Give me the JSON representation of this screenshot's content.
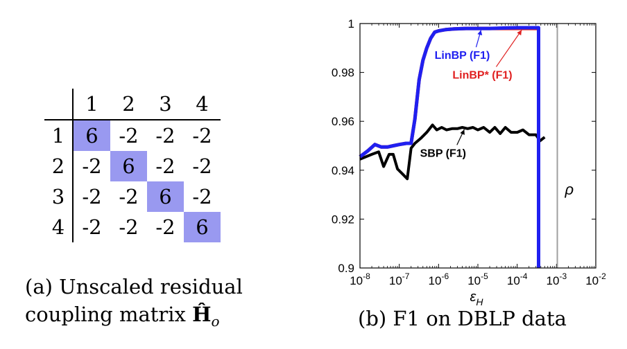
{
  "matrix_panel": {
    "col_headers": [
      "1",
      "2",
      "3",
      "4"
    ],
    "rows": [
      {
        "label": "1",
        "cells": [
          "6",
          "-2",
          "-2",
          "-2"
        ]
      },
      {
        "label": "2",
        "cells": [
          "-2",
          "6",
          "-2",
          "-2"
        ]
      },
      {
        "label": "3",
        "cells": [
          "-2",
          "-2",
          "6",
          "-2"
        ]
      },
      {
        "label": "4",
        "cells": [
          "-2",
          "-2",
          "-2",
          "6"
        ]
      }
    ],
    "highlight_color": "#9999f0",
    "caption_line1": "(a) Unscaled residual",
    "caption_line2_text": "coupling matrix ",
    "caption_line2_symbol": "Ĥ",
    "caption_line2_sub": "o"
  },
  "chart_caption": "(b) F1 on DBLP data",
  "chart_data": {
    "type": "line",
    "xscale": "log",
    "xlim": [
      1e-08,
      0.01
    ],
    "ylim": [
      0.9,
      1.0
    ],
    "xlabel": "ε",
    "xlabel_sub": "H",
    "x_ticks": [
      {
        "exp": "-8"
      },
      {
        "exp": "-7"
      },
      {
        "exp": "-6"
      },
      {
        "exp": "-5"
      },
      {
        "exp": "-4"
      },
      {
        "exp": "-3"
      },
      {
        "exp": "-2"
      }
    ],
    "tick_base": "10",
    "y_ticks": [
      "0.9",
      "0.92",
      "0.94",
      "0.96",
      "0.98",
      "1"
    ],
    "y_tick_values": [
      0.9,
      0.92,
      0.94,
      0.96,
      0.98,
      1.0
    ],
    "series": [
      {
        "name": "SBP (F1)",
        "color": "#000000",
        "x": [
          1e-08,
          2e-08,
          3e-08,
          4e-08,
          5.5e-08,
          7e-08,
          9e-08,
          1.2e-07,
          1.6e-07,
          2e-07,
          2.5e-07,
          3.5e-07,
          5e-07,
          7e-07,
          9e-07,
          1.2e-06,
          1.6e-06,
          2.2e-06,
          3e-06,
          4e-06,
          5.5e-06,
          7.5e-06,
          1e-05,
          1.4e-05,
          2e-05,
          2.7e-05,
          3.7e-05,
          5e-05,
          7e-05,
          0.0001,
          0.00014,
          0.0002,
          0.0003,
          0.00038,
          0.0005
        ],
        "y": [
          0.9445,
          0.9465,
          0.9475,
          0.9415,
          0.9465,
          0.9465,
          0.9405,
          0.9385,
          0.9365,
          0.949,
          0.951,
          0.953,
          0.9555,
          0.9585,
          0.9565,
          0.9575,
          0.9565,
          0.957,
          0.957,
          0.9575,
          0.957,
          0.9575,
          0.9565,
          0.9575,
          0.9555,
          0.9575,
          0.955,
          0.9575,
          0.9555,
          0.9555,
          0.9565,
          0.9545,
          0.9545,
          0.952,
          0.9535
        ]
      },
      {
        "name": "LinBP* (F1)",
        "color": "#e02020",
        "x": [
          1e-08,
          1.6e-08,
          2.4e-08,
          3.5e-08,
          5e-08,
          7e-08,
          1e-07,
          1.5e-07,
          2e-07,
          2.5e-07,
          3.2e-07,
          4e-07,
          5e-07,
          6.3e-07,
          8e-07,
          1e-06,
          1.5e-06,
          2.5e-06,
          5e-06,
          1e-05,
          2e-05,
          5e-05,
          0.0001,
          0.0002,
          0.00035
        ],
        "y": [
          0.9455,
          0.948,
          0.9505,
          0.9495,
          0.9495,
          0.95,
          0.9505,
          0.951,
          0.951,
          0.961,
          0.977,
          0.985,
          0.99,
          0.994,
          0.9965,
          0.997,
          0.9975,
          0.9978,
          0.998,
          0.998,
          0.998,
          0.998,
          0.998,
          0.998,
          0.998
        ]
      },
      {
        "name": "LinBP (F1)",
        "color": "#2020f0",
        "x": [
          1e-08,
          1.6e-08,
          2.4e-08,
          3.5e-08,
          5e-08,
          7e-08,
          1e-07,
          1.5e-07,
          2e-07,
          2.5e-07,
          3.2e-07,
          4e-07,
          5e-07,
          6.3e-07,
          8e-07,
          1e-06,
          1.5e-06,
          2.5e-06,
          5e-06,
          1e-05,
          2e-05,
          5e-05,
          0.0001,
          0.0002,
          0.00035,
          0.00035,
          0.00035
        ],
        "y": [
          0.9455,
          0.948,
          0.9505,
          0.9495,
          0.9495,
          0.95,
          0.9505,
          0.951,
          0.951,
          0.961,
          0.977,
          0.985,
          0.99,
          0.994,
          0.9965,
          0.997,
          0.9975,
          0.9978,
          0.998,
          0.998,
          0.998,
          0.9982,
          0.9983,
          0.9983,
          0.9983,
          0.9983,
          0.9
        ]
      }
    ],
    "annotations": [
      {
        "text": "LinBP (F1)",
        "color": "#2020f0",
        "x": 4e-06,
        "y": 0.9855,
        "ax": 1.2e-05,
        "ay": 0.9982
      },
      {
        "text": "LinBP* (F1)",
        "color": "#e02020",
        "x": 1.3e-05,
        "y": 0.9775,
        "ax": 0.00013,
        "ay": 0.9982
      },
      {
        "text": "SBP (F1)",
        "color": "#000000",
        "x": 1.3e-06,
        "y": 0.9455,
        "ax": 4.5e-06,
        "ay": 0.9575
      }
    ],
    "rho_line": {
      "x": 0.00105,
      "label": "ρ",
      "color": "#a0a0a0",
      "label_y": 0.93
    }
  }
}
